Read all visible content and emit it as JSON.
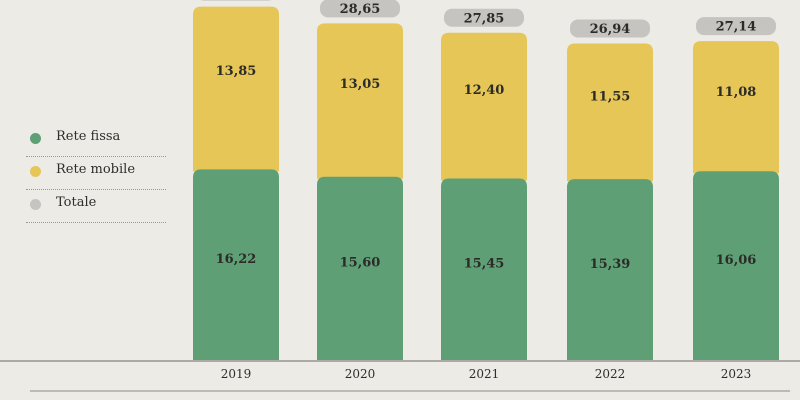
{
  "legend": {
    "items": [
      {
        "label": "Rete fissa",
        "color": "#5f9f76"
      },
      {
        "label": "Rete mobile",
        "color": "#e6c657"
      },
      {
        "label": "Totale",
        "color": "#c5c4c0"
      }
    ]
  },
  "chart_data": {
    "type": "bar",
    "stacked": true,
    "categories": [
      "2019",
      "2020",
      "2021",
      "2022",
      "2023"
    ],
    "series": [
      {
        "name": "Rete fissa",
        "values": [
          16.22,
          15.6,
          15.45,
          15.39,
          16.06
        ],
        "labels": [
          "16,22",
          "15,60",
          "15,45",
          "15,39",
          "16,06"
        ],
        "color": "#5f9f76"
      },
      {
        "name": "Rete mobile",
        "values": [
          13.85,
          13.05,
          12.4,
          11.55,
          11.08
        ],
        "labels": [
          "13,85",
          "13,05",
          "12,40",
          "11,55",
          "11,08"
        ],
        "color": "#e6c657"
      }
    ],
    "totals": {
      "name": "Totale",
      "values": [
        30.07,
        28.65,
        27.85,
        26.94,
        27.14
      ],
      "labels": [
        "",
        "28,65",
        "27,85",
        "26,94",
        "27,14"
      ],
      "color": "#c5c4c0"
    },
    "legend_position": "left",
    "grid": false
  }
}
